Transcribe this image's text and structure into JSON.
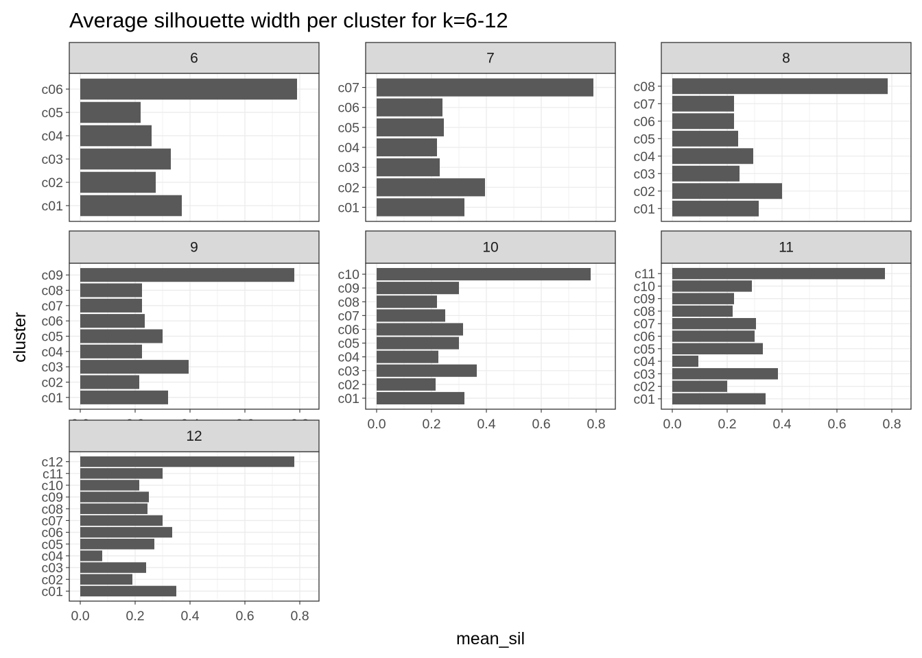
{
  "chart_data": {
    "type": "bar",
    "orientation": "horizontal",
    "title": "Average silhouette width per cluster for k=6-12",
    "xlabel": "mean_sil",
    "ylabel": "cluster",
    "xlim": [
      0,
      0.83
    ],
    "x_ticks": [
      "0.0",
      "0.2",
      "0.4",
      "0.6",
      "0.8"
    ],
    "x_tick_values": [
      0,
      0.2,
      0.4,
      0.6,
      0.8
    ],
    "grid": true,
    "bar_color": "#595959",
    "strip_color": "#d9d9d9",
    "panels": [
      {
        "label": "6",
        "categories": [
          "c01",
          "c02",
          "c03",
          "c04",
          "c05",
          "c06"
        ],
        "values": [
          0.37,
          0.275,
          0.33,
          0.26,
          0.22,
          0.79
        ]
      },
      {
        "label": "7",
        "categories": [
          "c01",
          "c02",
          "c03",
          "c04",
          "c05",
          "c06",
          "c07"
        ],
        "values": [
          0.32,
          0.395,
          0.23,
          0.22,
          0.245,
          0.24,
          0.79
        ]
      },
      {
        "label": "8",
        "categories": [
          "c01",
          "c02",
          "c03",
          "c04",
          "c05",
          "c06",
          "c07",
          "c08"
        ],
        "values": [
          0.315,
          0.4,
          0.245,
          0.295,
          0.24,
          0.225,
          0.225,
          0.785
        ]
      },
      {
        "label": "9",
        "categories": [
          "c01",
          "c02",
          "c03",
          "c04",
          "c05",
          "c06",
          "c07",
          "c08",
          "c09"
        ],
        "values": [
          0.32,
          0.215,
          0.395,
          0.225,
          0.3,
          0.235,
          0.225,
          0.225,
          0.78
        ]
      },
      {
        "label": "10",
        "categories": [
          "c01",
          "c02",
          "c03",
          "c04",
          "c05",
          "c06",
          "c07",
          "c08",
          "c09",
          "c10"
        ],
        "values": [
          0.32,
          0.215,
          0.365,
          0.225,
          0.3,
          0.315,
          0.25,
          0.22,
          0.3,
          0.78
        ]
      },
      {
        "label": "11",
        "categories": [
          "c01",
          "c02",
          "c03",
          "c04",
          "c05",
          "c06",
          "c07",
          "c08",
          "c09",
          "c10",
          "c11"
        ],
        "values": [
          0.34,
          0.2,
          0.385,
          0.095,
          0.33,
          0.3,
          0.305,
          0.22,
          0.225,
          0.29,
          0.775
        ]
      },
      {
        "label": "12",
        "categories": [
          "c01",
          "c02",
          "c03",
          "c04",
          "c05",
          "c06",
          "c07",
          "c08",
          "c09",
          "c10",
          "c11",
          "c12"
        ],
        "values": [
          0.35,
          0.19,
          0.24,
          0.08,
          0.27,
          0.335,
          0.3,
          0.245,
          0.25,
          0.215,
          0.3,
          0.78
        ]
      }
    ]
  }
}
